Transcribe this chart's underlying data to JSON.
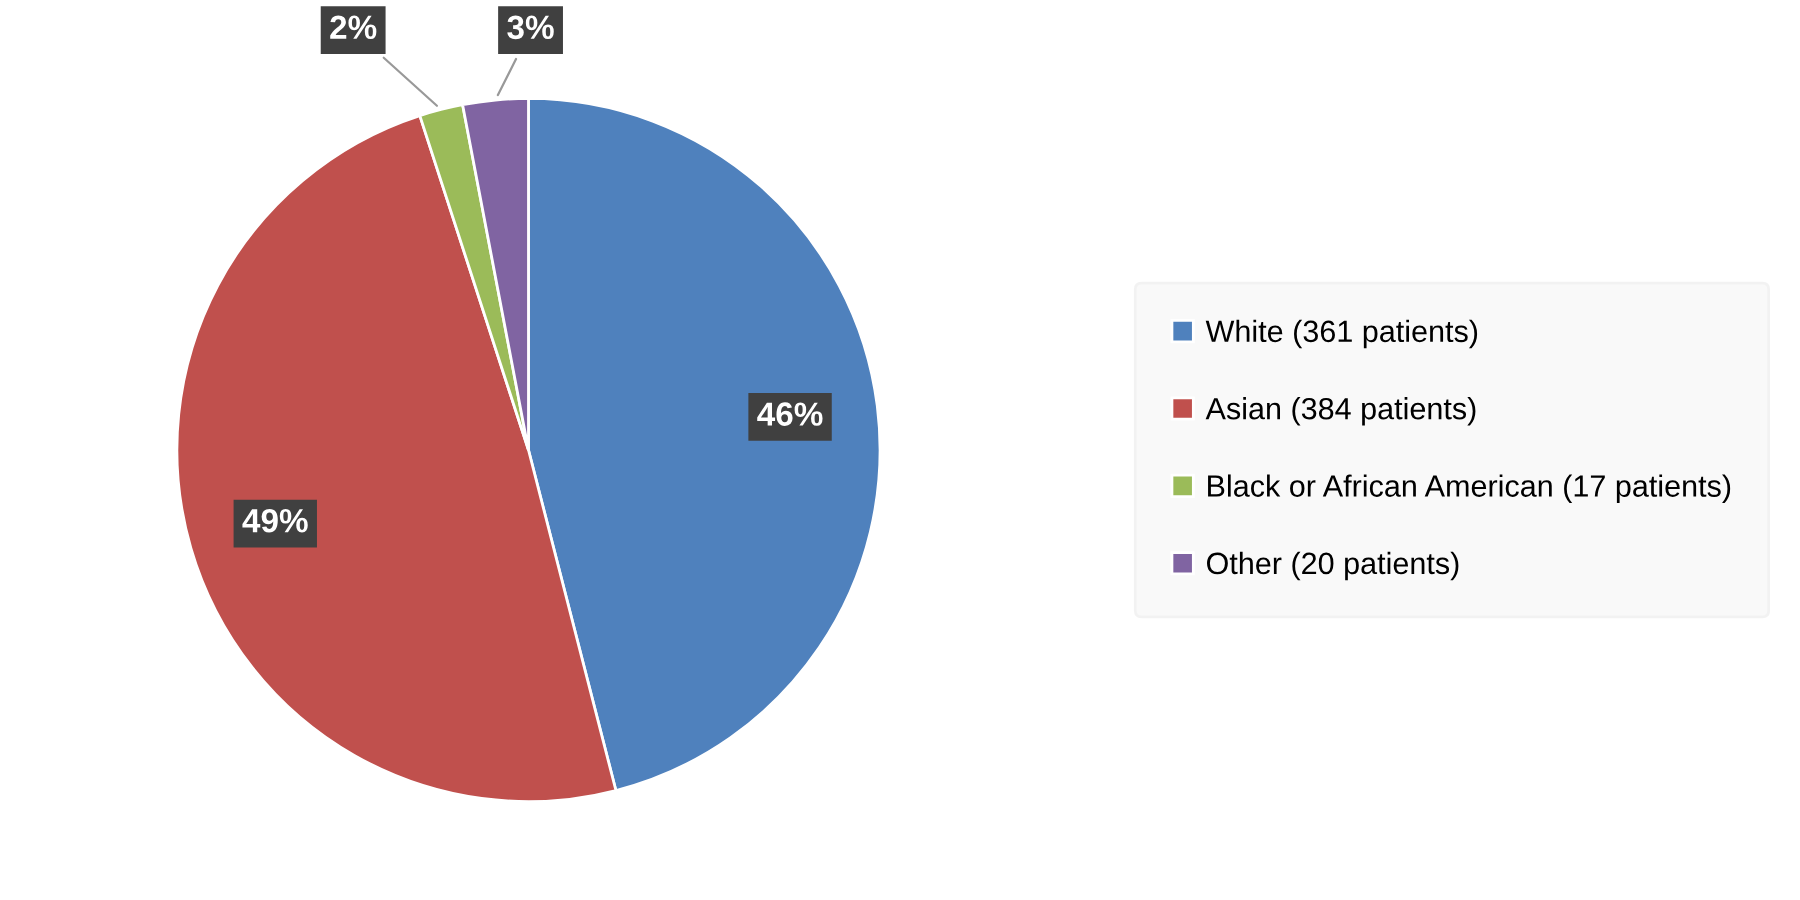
{
  "chart_data": {
    "type": "pie",
    "categories": [
      "White (361 patients)",
      "Asian (384 patients)",
      "Black or African American (17 patients)",
      "Other (20 patients)"
    ],
    "values": [
      46,
      49,
      2,
      3
    ],
    "colors": [
      "#4f81bd",
      "#c0504d",
      "#9bbb59",
      "#8064a2"
    ],
    "value_labels": [
      "46%",
      "49%",
      "2%",
      "3%"
    ],
    "legend": "right"
  }
}
